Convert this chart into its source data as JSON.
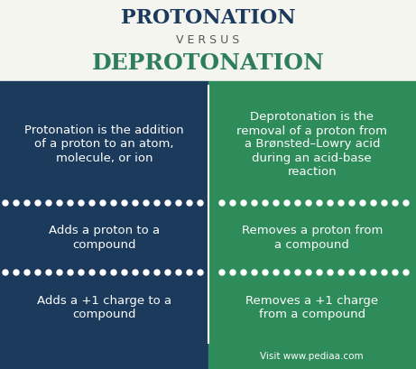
{
  "title1": "PROTONATION",
  "versus": "V E R S U S",
  "title2": "DEPROTONATION",
  "title1_color": "#1b3a5c",
  "versus_color": "#555555",
  "title2_color": "#2e7d5e",
  "left_bg": "#1b3a5c",
  "right_bg": "#2e8b5a",
  "text_color": "#ffffff",
  "background": "#f5f5f0",
  "left_cells": [
    "Protonation is the addition\nof a proton to an atom,\nmolecule, or ion",
    "Adds a proton to a\ncompound",
    "Adds a +1 charge to a\ncompound"
  ],
  "right_cells": [
    "Deprotonation is the\nremoval of a proton from\na Brønsted–Lowry acid\nduring an acid-base\nreaction",
    "Removes a proton from\na compound",
    "Removes a +1 charge\nfrom a compound"
  ],
  "footer_right_text": "Visit www.pediaa.com"
}
